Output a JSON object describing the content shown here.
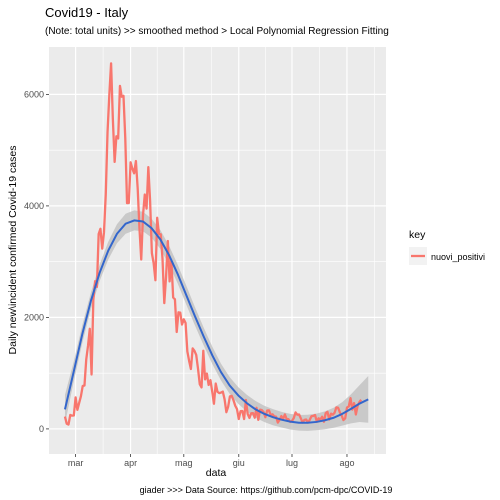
{
  "chart_data": {
    "type": "line",
    "title": "Covid19 - Italy",
    "subtitle": "(Note: total units) >> smoothed method > Local Polynomial Regression Fitting",
    "xlabel": "data",
    "ylabel": "Daily new\\incident confirmed Covid-19 cases",
    "caption": "giader >>> Data Source: https://github.com/pcm-dpc/COVID-19",
    "x_range": [
      "2020-02-24",
      "2020-08-13"
    ],
    "xlim": [
      "2020-02-15",
      "2020-08-23"
    ],
    "x_ticks": [
      {
        "date": "2020-03-01",
        "label": "mar"
      },
      {
        "date": "2020-04-01",
        "label": "apr"
      },
      {
        "date": "2020-05-01",
        "label": "mag"
      },
      {
        "date": "2020-06-01",
        "label": "giu"
      },
      {
        "date": "2020-07-01",
        "label": "lug"
      },
      {
        "date": "2020-08-01",
        "label": "ago"
      }
    ],
    "ylim": [
      -450,
      6850
    ],
    "y_ticks": [
      0,
      2000,
      4000,
      6000
    ],
    "grid": true,
    "legend": {
      "title": "key",
      "position": "right"
    },
    "series": [
      {
        "name": "nuovi_positivi",
        "color": "#F8766D",
        "values": [
          221,
          93,
          78,
          250,
          238,
          240,
          566,
          342,
          466,
          587,
          769,
          778,
          1247,
          1492,
          1797,
          977,
          2313,
          2651,
          2547,
          3497,
          3590,
          3233,
          3526,
          4207,
          5322,
          5986,
          6557,
          5560,
          4789,
          5249,
          5210,
          6153,
          5959,
          5974,
          5217,
          4050,
          4053,
          4782,
          4668,
          4585,
          4805,
          4316,
          3599,
          3039,
          3836,
          4204,
          3951,
          4694,
          4092,
          3153,
          2972,
          2667,
          3786,
          3493,
          3491,
          3047,
          2256,
          2729,
          3370,
          2646,
          3021,
          2357,
          2324,
          1739,
          2091,
          2086,
          1872,
          1965,
          1900,
          1389,
          1221,
          1075,
          1444,
          1401,
          1327,
          1083,
          802,
          744,
          1402,
          888,
          992,
          789,
          875,
          675,
          451,
          813,
          665,
          642,
          652,
          669,
          531,
          300,
          397,
          584,
          593,
          516,
          416,
          355,
          178,
          318,
          321,
          177,
          518,
          270,
          197,
          280,
          283,
          202,
          379,
          163,
          346,
          338,
          301,
          210,
          329,
          333,
          251,
          262,
          224,
          221,
          113,
          163,
          230,
          182,
          259,
          175,
          174,
          126,
          142,
          193,
          296,
          255,
          259,
          188,
          114,
          163,
          169,
          114,
          162,
          230,
          233,
          249,
          129,
          190,
          169,
          218,
          128,
          282,
          306,
          168,
          274,
          255,
          289,
          386,
          379,
          295,
          239,
          159,
          190,
          384,
          402,
          552,
          347,
          463,
          259,
          412,
          481,
          523
        ]
      }
    ],
    "smooth": {
      "color": "#3366CC",
      "band_color": "#BDBDBD",
      "values": [
        350,
        1020,
        1700,
        2300,
        2800,
        3200,
        3500,
        3680,
        3740,
        3720,
        3600,
        3400,
        3120,
        2780,
        2400,
        2020,
        1660,
        1320,
        1020,
        780,
        600,
        460,
        350,
        270,
        210,
        165,
        130,
        110,
        110,
        125,
        155,
        200,
        270,
        360,
        455,
        530
      ],
      "band_halfwidth": [
        260,
        180,
        160,
        150,
        150,
        160,
        170,
        180,
        180,
        175,
        170,
        170,
        170,
        170,
        170,
        165,
        160,
        155,
        150,
        150,
        150,
        150,
        150,
        145,
        145,
        140,
        140,
        140,
        145,
        150,
        160,
        180,
        210,
        260,
        330,
        420
      ]
    }
  }
}
